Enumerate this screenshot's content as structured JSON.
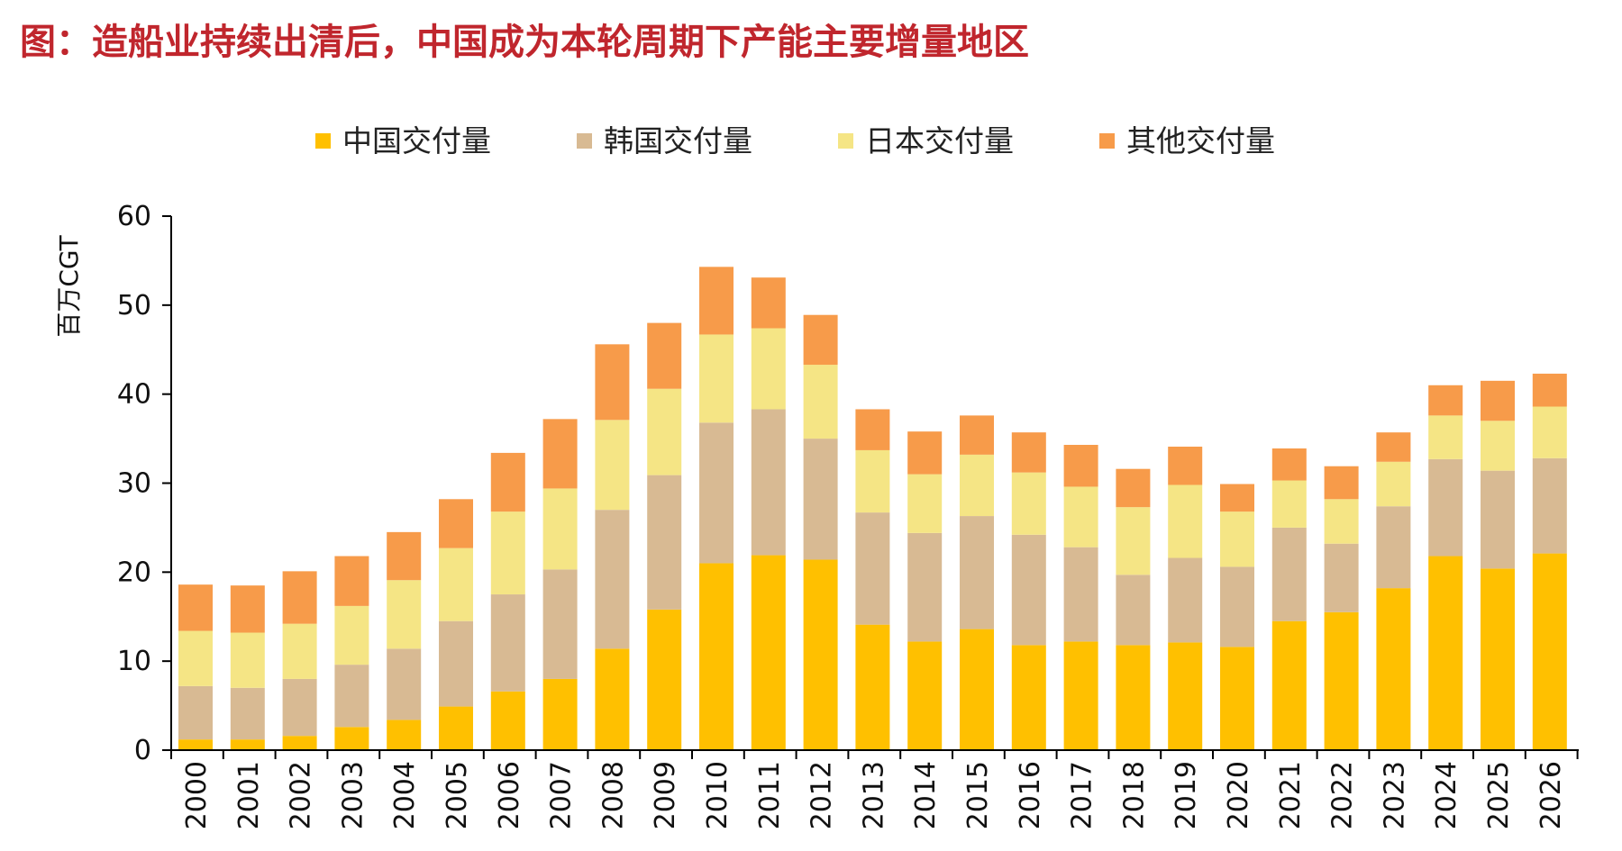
{
  "page": {
    "title": "图：造船业持续出清后，中国成为本轮周期下产能主要增量地区"
  },
  "chart_data": {
    "type": "bar",
    "stacked": true,
    "title": "",
    "xlabel": "",
    "ylabel": "百万CGT",
    "ylim": [
      0,
      60
    ],
    "yticks": [
      0,
      10,
      20,
      30,
      40,
      50,
      60
    ],
    "legend_position": "top",
    "categories": [
      "2000",
      "2001",
      "2002",
      "2003",
      "2004",
      "2005",
      "2006",
      "2007",
      "2008",
      "2009",
      "2010",
      "2011",
      "2012",
      "2013",
      "2014",
      "2015",
      "2016",
      "2017",
      "2018",
      "2019",
      "2020",
      "2021",
      "2022",
      "2023",
      "2024",
      "2025",
      "2026"
    ],
    "series": [
      {
        "name": "中国交付量",
        "color": "#FFC000",
        "values": [
          1.2,
          1.2,
          1.6,
          2.6,
          3.4,
          4.9,
          6.6,
          8.0,
          11.4,
          15.8,
          21.0,
          21.9,
          21.4,
          14.1,
          12.2,
          13.6,
          11.8,
          12.2,
          11.8,
          12.1,
          11.6,
          14.5,
          15.5,
          18.2,
          21.8,
          20.4,
          22.1
        ]
      },
      {
        "name": "韩国交付量",
        "color": "#D8BA93",
        "values": [
          6.0,
          5.8,
          6.4,
          7.0,
          8.0,
          9.6,
          10.9,
          12.3,
          15.6,
          15.1,
          15.8,
          16.4,
          13.6,
          12.6,
          12.2,
          12.7,
          12.4,
          10.6,
          7.9,
          9.5,
          9.0,
          10.5,
          7.7,
          9.2,
          10.9,
          11.0,
          10.7
        ]
      },
      {
        "name": "日本交付量",
        "color": "#F5E585",
        "values": [
          6.2,
          6.2,
          6.2,
          6.6,
          7.7,
          8.2,
          9.3,
          9.1,
          10.1,
          9.7,
          9.9,
          9.1,
          8.3,
          7.0,
          6.6,
          6.9,
          7.0,
          6.8,
          7.6,
          8.2,
          6.2,
          5.3,
          5.0,
          5.0,
          4.9,
          5.6,
          5.8
        ]
      },
      {
        "name": "其他交付量",
        "color": "#F79B4A",
        "values": [
          5.2,
          5.3,
          5.9,
          5.6,
          5.4,
          5.5,
          6.6,
          7.8,
          8.5,
          7.4,
          7.6,
          5.7,
          5.6,
          4.6,
          4.8,
          4.4,
          4.5,
          4.7,
          4.3,
          4.3,
          3.1,
          3.6,
          3.7,
          3.3,
          3.4,
          4.5,
          3.7
        ]
      }
    ]
  }
}
